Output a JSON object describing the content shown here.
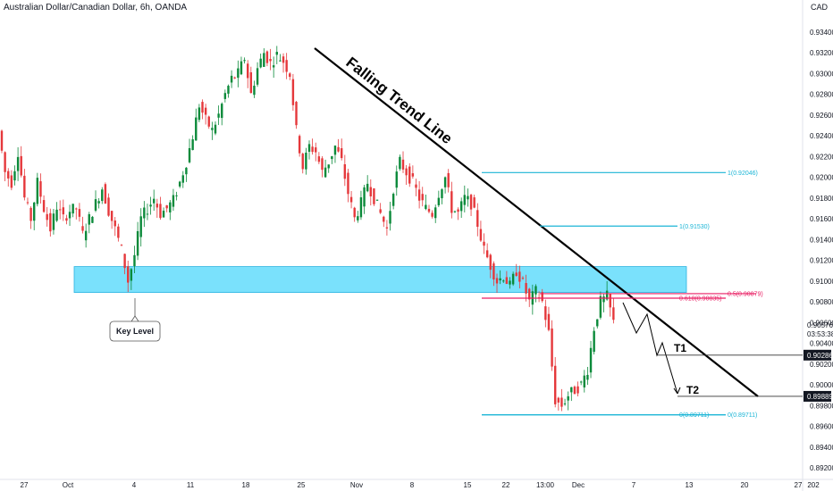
{
  "header": {
    "title": "Australian Dollar/Canadian Dollar, 6h, OANDA",
    "currency": "CAD"
  },
  "colors": {
    "up": "#26a69a",
    "up_fill": "#0b8a3a",
    "down": "#e5383b",
    "key_zone": "#4dd7fb",
    "fib_line": "#1bb5d6",
    "fib_mid": "#e91e63",
    "trend": "#000000",
    "tag_black": "#131722"
  },
  "chart_data": {
    "type": "candlestick",
    "symbol": "AUDCAD",
    "timeframe": "6h",
    "broker": "OANDA",
    "ylim": [
      0.891,
      0.936
    ],
    "y_ticks": [
      "0.93400",
      "0.93200",
      "0.93000",
      "0.92800",
      "0.92600",
      "0.92400",
      "0.92200",
      "0.92000",
      "0.91800",
      "0.91600",
      "0.91400",
      "0.91200",
      "0.91000",
      "0.90800",
      "0.90600",
      "0.90400",
      "0.90200",
      "0.90000",
      "0.89800",
      "0.89600",
      "0.89400",
      "0.89200"
    ],
    "x_ticks": [
      "27",
      "Oct",
      "4",
      "11",
      "18",
      "25",
      "Nov",
      "8",
      "15",
      "22",
      "13:00",
      "Dec",
      "7",
      "13",
      "20",
      "27",
      "202"
    ],
    "price_path": [
      0.9245,
      0.9205,
      0.9195,
      0.9225,
      0.918,
      0.916,
      0.9195,
      0.917,
      0.915,
      0.9172,
      0.916,
      0.9168,
      0.917,
      0.9145,
      0.916,
      0.9175,
      0.919,
      0.9168,
      0.915,
      0.913,
      0.91,
      0.9125,
      0.916,
      0.917,
      0.918,
      0.9165,
      0.917,
      0.9178,
      0.9195,
      0.9215,
      0.924,
      0.927,
      0.9255,
      0.9245,
      0.926,
      0.928,
      0.9295,
      0.93,
      0.9315,
      0.928,
      0.9305,
      0.932,
      0.931,
      0.9318,
      0.9312,
      0.93,
      0.9245,
      0.921,
      0.923,
      0.9225,
      0.9205,
      0.9215,
      0.923,
      0.9215,
      0.9185,
      0.916,
      0.9175,
      0.9195,
      0.918,
      0.9165,
      0.915,
      0.919,
      0.9215,
      0.9205,
      0.9195,
      0.918,
      0.917,
      0.9165,
      0.9185,
      0.92,
      0.917,
      0.9165,
      0.918,
      0.9175,
      0.9155,
      0.913,
      0.9115,
      0.91,
      0.9105,
      0.9095,
      0.911,
      0.9098,
      0.908,
      0.909,
      0.908,
      0.905,
      0.8985,
      0.898,
      0.899,
      0.8995,
      0.9,
      0.9015,
      0.9055,
      0.908,
      0.9085,
      0.906
    ],
    "key_level": {
      "label": "Key Level",
      "from": 0.9089,
      "to": 0.9114
    },
    "trend_line": {
      "label": "Falling Trend Line",
      "start_price": 0.932,
      "end_price": 0.899
    },
    "fib_levels": [
      {
        "label": "1(0.92046)",
        "price": 0.92046
      },
      {
        "label": "1(0.91530)",
        "price": 0.9153
      },
      {
        "label": "0.618(0.90835)",
        "price": 0.90835
      },
      {
        "label": "0.5(0.90879)",
        "price": 0.90879
      },
      {
        "label": "0(0.89711)",
        "price": 0.89711
      },
      {
        "label": "0(0.89711)",
        "price": 0.89711
      }
    ],
    "targets": [
      {
        "label": "T1",
        "price": 0.90286
      },
      {
        "label": "T2",
        "price": 0.89889
      }
    ],
    "price_tags": [
      {
        "text": "0.90576",
        "price": 0.90576,
        "style": "plain"
      },
      {
        "text": "03:53:38",
        "price": 0.9049,
        "style": "plain"
      },
      {
        "text": "0.90286",
        "price": 0.90286,
        "style": "black"
      },
      {
        "text": "0.89889",
        "price": 0.89889,
        "style": "black"
      }
    ]
  }
}
